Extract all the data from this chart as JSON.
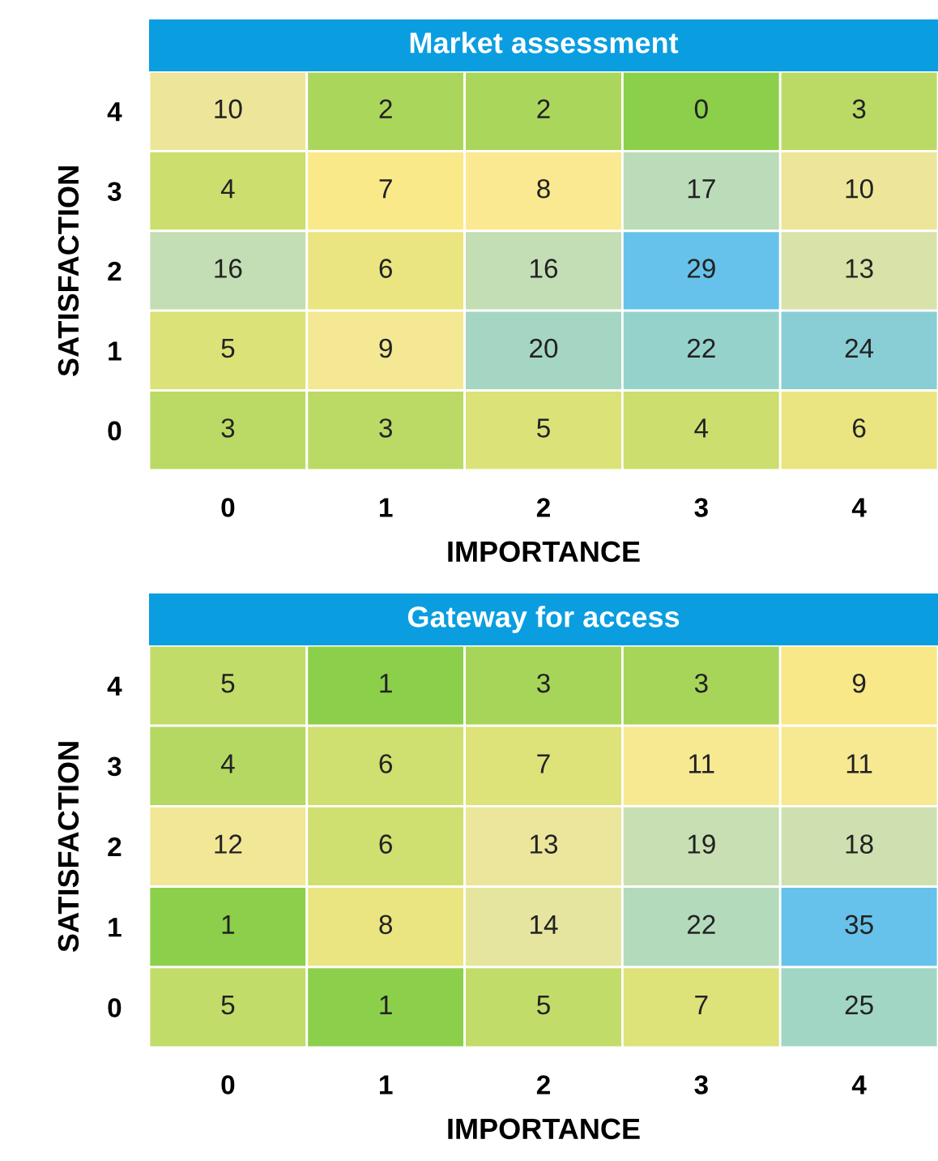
{
  "chart_data": [
    {
      "type": "heatmap",
      "title": "Market assessment",
      "xlabel": "IMPORTANCE",
      "ylabel": "SATISFACTION",
      "categories": [
        "0",
        "1",
        "2",
        "3",
        "4"
      ],
      "y_categories": [
        "4",
        "3",
        "2",
        "1",
        "0"
      ],
      "cells": [
        [
          10,
          2,
          2,
          0,
          3
        ],
        [
          4,
          7,
          8,
          17,
          10
        ],
        [
          16,
          6,
          16,
          29,
          13
        ],
        [
          5,
          9,
          20,
          22,
          24
        ],
        [
          3,
          3,
          5,
          4,
          6
        ]
      ],
      "data_labels": true
    },
    {
      "type": "heatmap",
      "title": "Gateway for access",
      "xlabel": "IMPORTANCE",
      "ylabel": "SATISFACTION",
      "categories": [
        "0",
        "1",
        "2",
        "3",
        "4"
      ],
      "y_categories": [
        "4",
        "3",
        "2",
        "1",
        "0"
      ],
      "cells": [
        [
          5,
          1,
          3,
          3,
          9
        ],
        [
          4,
          6,
          7,
          11,
          11
        ],
        [
          12,
          6,
          13,
          19,
          18
        ],
        [
          1,
          8,
          14,
          22,
          35
        ],
        [
          5,
          1,
          5,
          7,
          25
        ]
      ],
      "data_labels": true
    }
  ]
}
